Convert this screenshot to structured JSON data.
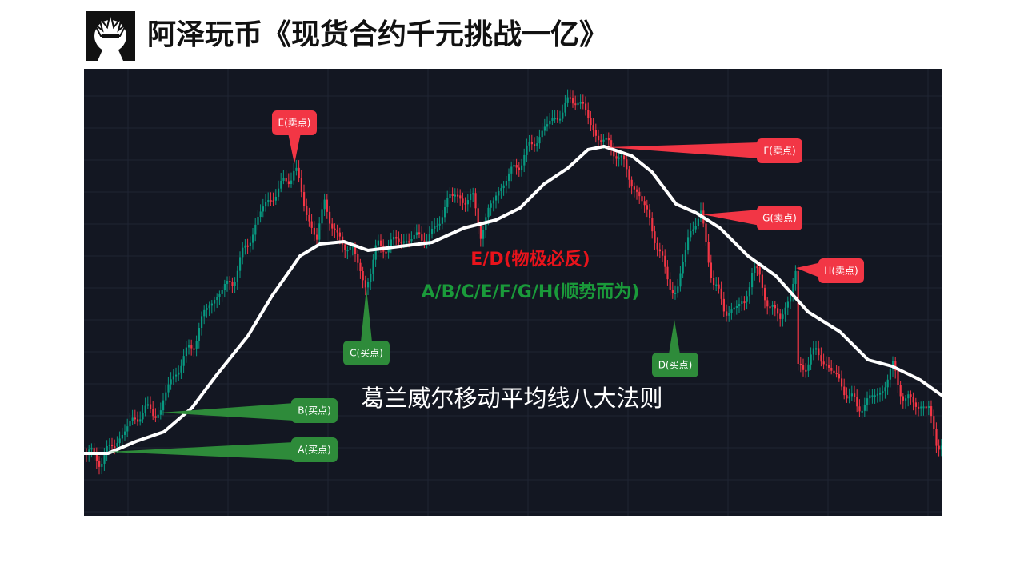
{
  "header": {
    "title": "阿泽玩币《现货合约千元挑战一亿》"
  },
  "chart": {
    "callouts": [
      {
        "label": "E(卖点)"
      },
      {
        "label": "F(卖点)"
      },
      {
        "label": "G(卖点)"
      },
      {
        "label": "H(卖点)"
      },
      {
        "label": "C(买点)"
      },
      {
        "label": "D(买点)"
      },
      {
        "label": "B(买点)"
      },
      {
        "label": "A(买点)"
      }
    ],
    "rule_reversal": "E/D(物极必反)",
    "rule_trend": "A/B/C/E/F/G/H(顺势而为)",
    "caption": "葛兰威尔移动平均线八大法则"
  }
}
